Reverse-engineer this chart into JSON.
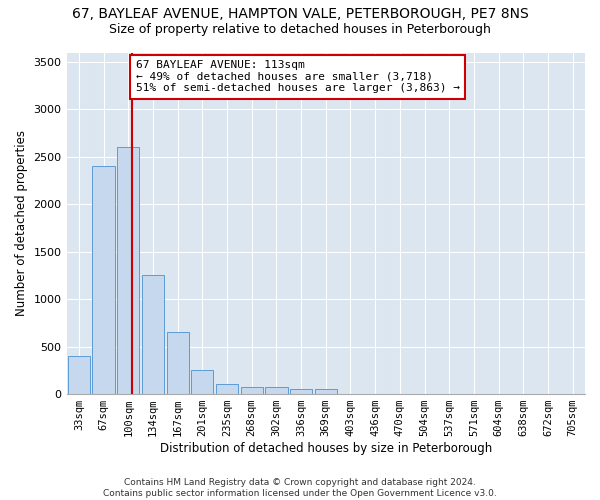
{
  "title": "67, BAYLEAF AVENUE, HAMPTON VALE, PETERBOROUGH, PE7 8NS",
  "subtitle": "Size of property relative to detached houses in Peterborough",
  "xlabel": "Distribution of detached houses by size in Peterborough",
  "ylabel": "Number of detached properties",
  "categories": [
    "33sqm",
    "67sqm",
    "100sqm",
    "134sqm",
    "167sqm",
    "201sqm",
    "235sqm",
    "268sqm",
    "302sqm",
    "336sqm",
    "369sqm",
    "403sqm",
    "436sqm",
    "470sqm",
    "504sqm",
    "537sqm",
    "571sqm",
    "604sqm",
    "638sqm",
    "672sqm",
    "705sqm"
  ],
  "values": [
    400,
    2400,
    2600,
    1250,
    650,
    250,
    105,
    70,
    70,
    55,
    55,
    5,
    5,
    5,
    5,
    5,
    5,
    5,
    5,
    5,
    5
  ],
  "bar_color": "#c5d8ee",
  "bar_edge_color": "#5b9bd5",
  "vline_color": "#cc0000",
  "vline_pos": 2.15,
  "annotation_text": "67 BAYLEAF AVENUE: 113sqm\n← 49% of detached houses are smaller (3,718)\n51% of semi-detached houses are larger (3,863) →",
  "annotation_box_color": "#ffffff",
  "annotation_box_edge": "#cc0000",
  "ylim": [
    0,
    3600
  ],
  "yticks": [
    0,
    500,
    1000,
    1500,
    2000,
    2500,
    3000,
    3500
  ],
  "plot_bg_color": "#dce6f0",
  "footer": "Contains HM Land Registry data © Crown copyright and database right 2024.\nContains public sector information licensed under the Open Government Licence v3.0.",
  "title_fontsize": 10,
  "subtitle_fontsize": 9,
  "xlabel_fontsize": 8.5,
  "ylabel_fontsize": 8.5
}
